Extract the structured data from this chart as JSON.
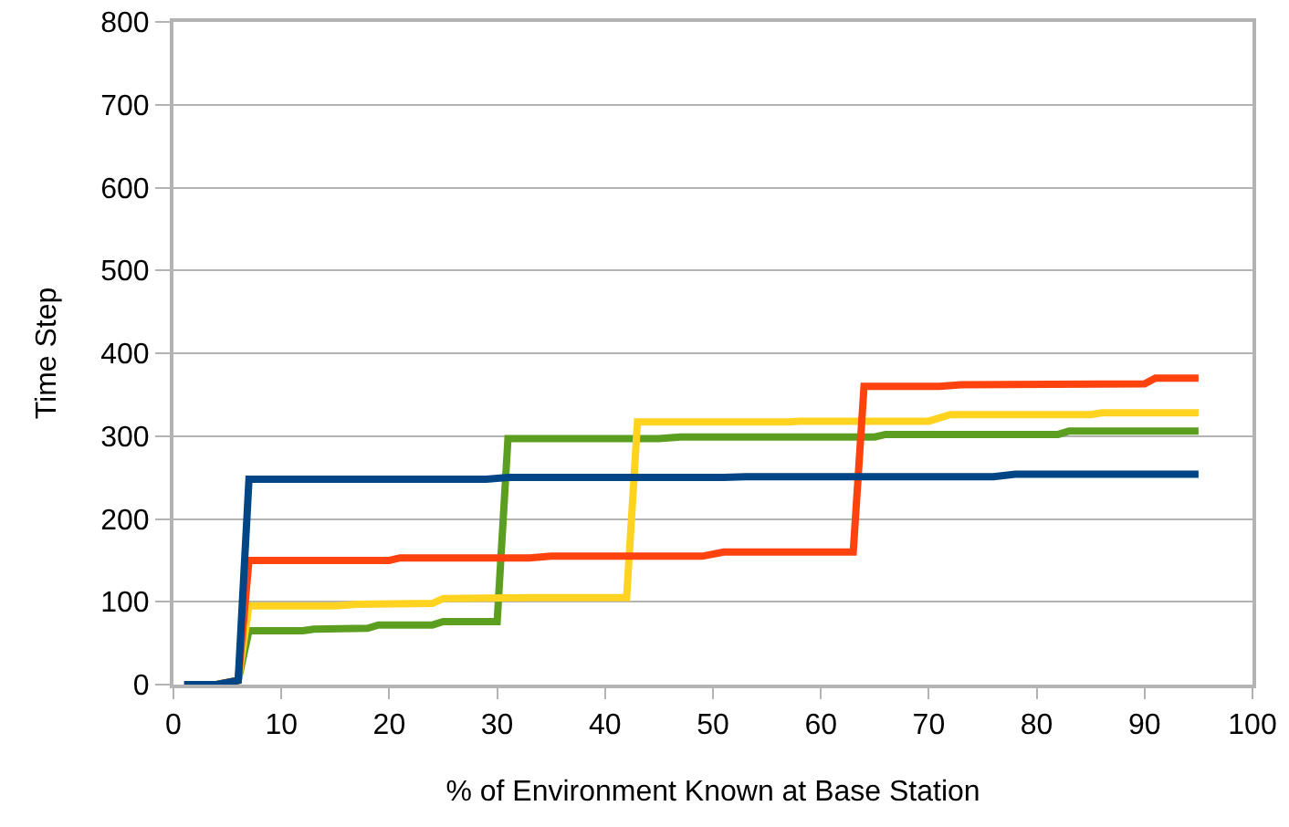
{
  "chart_data": {
    "type": "line",
    "xlabel": "% of Environment Known at Base Station",
    "ylabel": "Time Step",
    "xlim": [
      0,
      100
    ],
    "xticks": [
      0,
      10,
      20,
      30,
      40,
      50,
      60,
      70,
      80,
      90,
      100
    ],
    "ylim": [
      0,
      800
    ],
    "yticks": [
      0,
      100,
      200,
      300,
      400,
      500,
      600,
      700,
      800
    ],
    "grid": "y",
    "marker": "none",
    "line_style": "solid",
    "series": [
      {
        "color": "#5c9e1f",
        "x": [
          1,
          4,
          6,
          7,
          12,
          13,
          18,
          19,
          24,
          25,
          30,
          31,
          45,
          47,
          65,
          66,
          82,
          83,
          95
        ],
        "values": [
          0,
          0,
          5,
          65,
          65,
          67,
          68,
          72,
          72,
          76,
          76,
          297,
          297,
          299,
          299,
          302,
          302,
          306,
          306
        ]
      },
      {
        "color": "#ffd320",
        "x": [
          1,
          4,
          6,
          7,
          15,
          17,
          24,
          25,
          33,
          42,
          43,
          57,
          58,
          70,
          72,
          85,
          86,
          95
        ],
        "values": [
          0,
          0,
          5,
          95,
          95,
          97,
          98,
          104,
          105,
          105,
          317,
          317,
          318,
          318,
          326,
          326,
          328,
          328
        ]
      },
      {
        "color": "#ff420e",
        "x": [
          1,
          4,
          6,
          7,
          20,
          21,
          33,
          35,
          49,
          51,
          63,
          64,
          71,
          73,
          90,
          91,
          95
        ],
        "values": [
          0,
          0,
          5,
          150,
          150,
          153,
          153,
          155,
          155,
          160,
          160,
          360,
          360,
          362,
          363,
          370,
          370
        ]
      },
      {
        "color": "#004586",
        "x": [
          1,
          4,
          6,
          7,
          29,
          31,
          51,
          53,
          76,
          78,
          95
        ],
        "values": [
          0,
          0,
          5,
          248,
          248,
          250,
          250,
          251,
          251,
          254,
          254
        ]
      }
    ]
  }
}
